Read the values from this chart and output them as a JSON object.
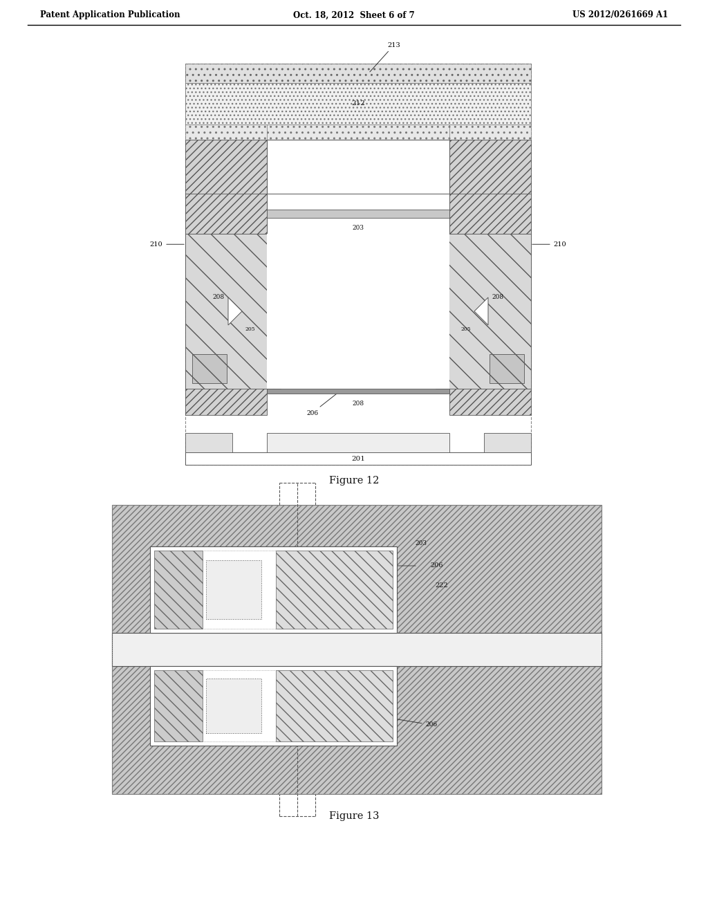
{
  "header_left": "Patent Application Publication",
  "header_center": "Oct. 18, 2012  Sheet 6 of 7",
  "header_right": "US 2012/0261669 A1",
  "figure12_caption": "Figure 12",
  "figure13_caption": "Figure 13",
  "bg_color": "#ffffff"
}
